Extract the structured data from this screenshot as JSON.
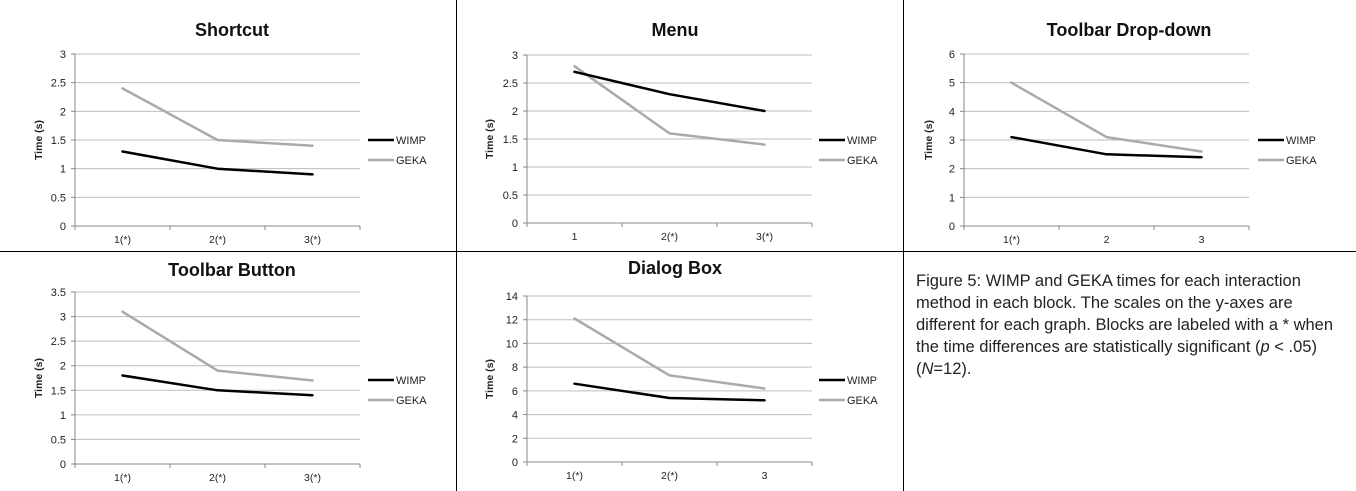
{
  "chart_data": [
    {
      "type": "line",
      "title": "Shortcut",
      "ylabel": "Time (s)",
      "categories": [
        "1(*)",
        "2(*)",
        "3(*)"
      ],
      "yticks": [
        "0",
        "0.5",
        "1",
        "1.5",
        "2",
        "2.5",
        "3"
      ],
      "ylim": [
        0,
        3
      ],
      "grid": true,
      "legend_position": "right",
      "series": [
        {
          "name": "WIMP",
          "values": [
            1.3,
            1.0,
            0.9
          ],
          "color": "#000000"
        },
        {
          "name": "GEKA",
          "values": [
            2.4,
            1.5,
            1.4
          ],
          "color": "#aaaaaa"
        }
      ]
    },
    {
      "type": "line",
      "title": "Menu",
      "ylabel": "Time (s)",
      "categories": [
        "1",
        "2(*)",
        "3(*)"
      ],
      "yticks": [
        "0",
        "0.5",
        "1",
        "1.5",
        "2",
        "2.5",
        "3"
      ],
      "ylim": [
        0,
        3
      ],
      "grid": true,
      "legend_position": "right",
      "series": [
        {
          "name": "WIMP",
          "values": [
            2.7,
            2.3,
            2.0
          ],
          "color": "#000000"
        },
        {
          "name": "GEKA",
          "values": [
            2.8,
            1.6,
            1.4
          ],
          "color": "#aaaaaa"
        }
      ]
    },
    {
      "type": "line",
      "title": "Toolbar Drop-down",
      "ylabel": "Time (s)",
      "categories": [
        "1(*)",
        "2",
        "3"
      ],
      "yticks": [
        "0",
        "1",
        "2",
        "3",
        "4",
        "5",
        "6"
      ],
      "ylim": [
        0,
        6
      ],
      "grid": true,
      "legend_position": "right",
      "series": [
        {
          "name": "WIMP",
          "values": [
            3.1,
            2.5,
            2.4
          ],
          "color": "#000000"
        },
        {
          "name": "GEKA",
          "values": [
            5.0,
            3.1,
            2.6
          ],
          "color": "#aaaaaa"
        }
      ]
    },
    {
      "type": "line",
      "title": "Toolbar Button",
      "ylabel": "Time (s)",
      "categories": [
        "1(*)",
        "2(*)",
        "3(*)"
      ],
      "yticks": [
        "0",
        "0.5",
        "1",
        "1.5",
        "2",
        "2.5",
        "3",
        "3.5"
      ],
      "ylim": [
        0,
        3.5
      ],
      "grid": true,
      "legend_position": "right",
      "series": [
        {
          "name": "WIMP",
          "values": [
            1.8,
            1.5,
            1.4
          ],
          "color": "#000000"
        },
        {
          "name": "GEKA",
          "values": [
            3.1,
            1.9,
            1.7
          ],
          "color": "#aaaaaa"
        }
      ]
    },
    {
      "type": "line",
      "title": "Dialog Box",
      "ylabel": "Time (s)",
      "categories": [
        "1(*)",
        "2(*)",
        "3"
      ],
      "yticks": [
        "0",
        "2",
        "4",
        "6",
        "8",
        "10",
        "12",
        "14"
      ],
      "ylim": [
        0,
        14
      ],
      "grid": true,
      "legend_position": "right",
      "series": [
        {
          "name": "WIMP",
          "values": [
            6.6,
            5.4,
            5.2
          ],
          "color": "#000000"
        },
        {
          "name": "GEKA",
          "values": [
            12.1,
            7.3,
            6.2
          ],
          "color": "#aaaaaa"
        }
      ]
    }
  ],
  "caption": {
    "prefix": "Figure 5: WIMP and GEKA times for each interaction method in each block. The scales on the y-axes are different for each graph. Blocks are labeled with a * when the time differences are statistically significant (",
    "p": "p",
    "middle": " < .05) (",
    "n": "N",
    "suffix": "=12)."
  }
}
